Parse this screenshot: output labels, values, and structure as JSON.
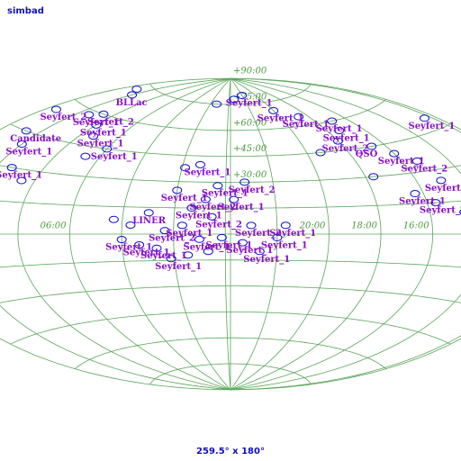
{
  "header": {
    "title": "simbad"
  },
  "footer": {
    "field": "259.5° x 180°"
  },
  "dec_labels": [
    {
      "value": 90,
      "label": "+90:00"
    },
    {
      "value": 75,
      "label": "+75:00"
    },
    {
      "value": 60,
      "label": "+60:00"
    },
    {
      "value": 45,
      "label": "+45:00"
    },
    {
      "value": 30,
      "label": "+30:00"
    }
  ],
  "ra_labels": [
    {
      "value": 90,
      "label": "06:00"
    },
    {
      "value": 300,
      "label": "20:00"
    },
    {
      "value": 270,
      "label": "18:00"
    },
    {
      "value": 240,
      "label": "16:00"
    }
  ],
  "objects": [
    {
      "ra": 5,
      "dec": 28,
      "label": "Seyfert_1"
    },
    {
      "ra": 12,
      "dec": 20,
      "label": "Seyfert_2"
    },
    {
      "ra": 20,
      "dec": 15,
      "label": "Seyfert_1"
    },
    {
      "ra": 30,
      "dec": 25,
      "label": "Seyfert_1"
    },
    {
      "ra": 8,
      "dec": 10,
      "label": "Seyfert_2"
    },
    {
      "ra": 25,
      "dec": 5,
      "label": "Seyfert_1"
    },
    {
      "ra": 35,
      "dec": 2,
      "label": "Seyfert_2"
    },
    {
      "ra": 15,
      "dec": -3,
      "label": "Seyfert_1"
    },
    {
      "ra": 40,
      "dec": -8,
      "label": "Seyfert_1"
    },
    {
      "ra": 2,
      "dec": -2,
      "label": "Seyfert_1"
    },
    {
      "ra": 350,
      "dec": -5,
      "label": "Seyfert_1"
    },
    {
      "ra": 345,
      "dec": 5,
      "label": "Seyfert_2"
    },
    {
      "ra": 340,
      "dec": -10,
      "label": "Seyfert_1"
    },
    {
      "ra": 50,
      "dec": -6,
      "label": "Seyfert_1"
    },
    {
      "ra": 45,
      "dec": 12,
      "label": "LINER"
    },
    {
      "ra": 18,
      "dec": 40,
      "label": "Seyfert_1"
    },
    {
      "ra": 28,
      "dec": 38
    },
    {
      "ra": 355,
      "dec": 20,
      "label": "Seyfert_1"
    },
    {
      "ra": 348,
      "dec": 30,
      "label": "Seyfert_2"
    },
    {
      "ra": 60,
      "dec": -3,
      "label": "Seyfert_1"
    },
    {
      "ra": 55,
      "dec": 5
    },
    {
      "ra": 10,
      "dec": -10
    },
    {
      "ra": 22,
      "dec": -12
    },
    {
      "ra": 32,
      "dec": -14,
      "label": "Seyfert_1"
    },
    {
      "ra": 65,
      "dec": 8
    },
    {
      "ra": 330,
      "dec": -2,
      "label": "Seyfert_1"
    },
    {
      "ra": 325,
      "dec": 5,
      "label": "Seyfert_1"
    },
    {
      "ra": 150,
      "dec": 70,
      "label": "BLLac"
    },
    {
      "ra": 165,
      "dec": 72
    },
    {
      "ra": 130,
      "dec": 60,
      "label": "Seyfert_2"
    },
    {
      "ra": 120,
      "dec": 55,
      "label": "Seyfert_1"
    },
    {
      "ra": 110,
      "dec": 50,
      "label": "Seyfert_1"
    },
    {
      "ra": 140,
      "dec": 58,
      "label": "Seyfert_1"
    },
    {
      "ra": 170,
      "dec": 55,
      "label": "Seyfert_2"
    },
    {
      "ra": 185,
      "dec": 50,
      "label": "Seyfert_1"
    },
    {
      "ra": 160,
      "dec": 45,
      "label": "Candidate"
    },
    {
      "ra": 150,
      "dec": 40,
      "label": "Seyfert_1"
    },
    {
      "ra": 175,
      "dec": 35,
      "label": "QSO"
    },
    {
      "ra": 140,
      "dec": 30,
      "label": "Seyfert_1"
    },
    {
      "ra": 100,
      "dec": 40
    },
    {
      "ra": 90,
      "dec": 45,
      "label": "Seyfert_1"
    },
    {
      "ra": 180,
      "dec": 20,
      "label": "LINER"
    },
    {
      "ra": 165,
      "dec": 25,
      "label": "Seyfert_2"
    },
    {
      "ra": 128,
      "dec": 25
    },
    {
      "ra": 300,
      "dec": 70,
      "label": "Seyfert_1"
    },
    {
      "ra": 280,
      "dec": 65,
      "label": "Seyfert_1"
    },
    {
      "ra": 260,
      "dec": 55,
      "label": "Seyfert_1"
    },
    {
      "ra": 250,
      "dec": 45,
      "label": "QSO"
    },
    {
      "ra": 240,
      "dec": 40,
      "label": "Seyfert_1"
    },
    {
      "ra": 230,
      "dec": 35,
      "label": "Seyfert_2"
    },
    {
      "ra": 225,
      "dec": 25,
      "label": "Seyfert_1"
    },
    {
      "ra": 245,
      "dec": 20,
      "label": "Seyfert_1"
    },
    {
      "ra": 235,
      "dec": 15,
      "label": "Seyfert_2"
    },
    {
      "ra": 265,
      "dec": 30
    },
    {
      "ra": 270,
      "dec": 50,
      "label": "Seyfert_2"
    },
    {
      "ra": 220,
      "dec": 10
    },
    {
      "ra": 290,
      "dec": 45
    },
    {
      "ra": 255,
      "dec": 60,
      "label": "Seyfert_1"
    },
    {
      "ra": 330,
      "dec": 80,
      "label": "Seyfert_1"
    },
    {
      "ra": 350,
      "dec": 78
    },
    {
      "ra": 20,
      "dec": 75
    }
  ]
}
